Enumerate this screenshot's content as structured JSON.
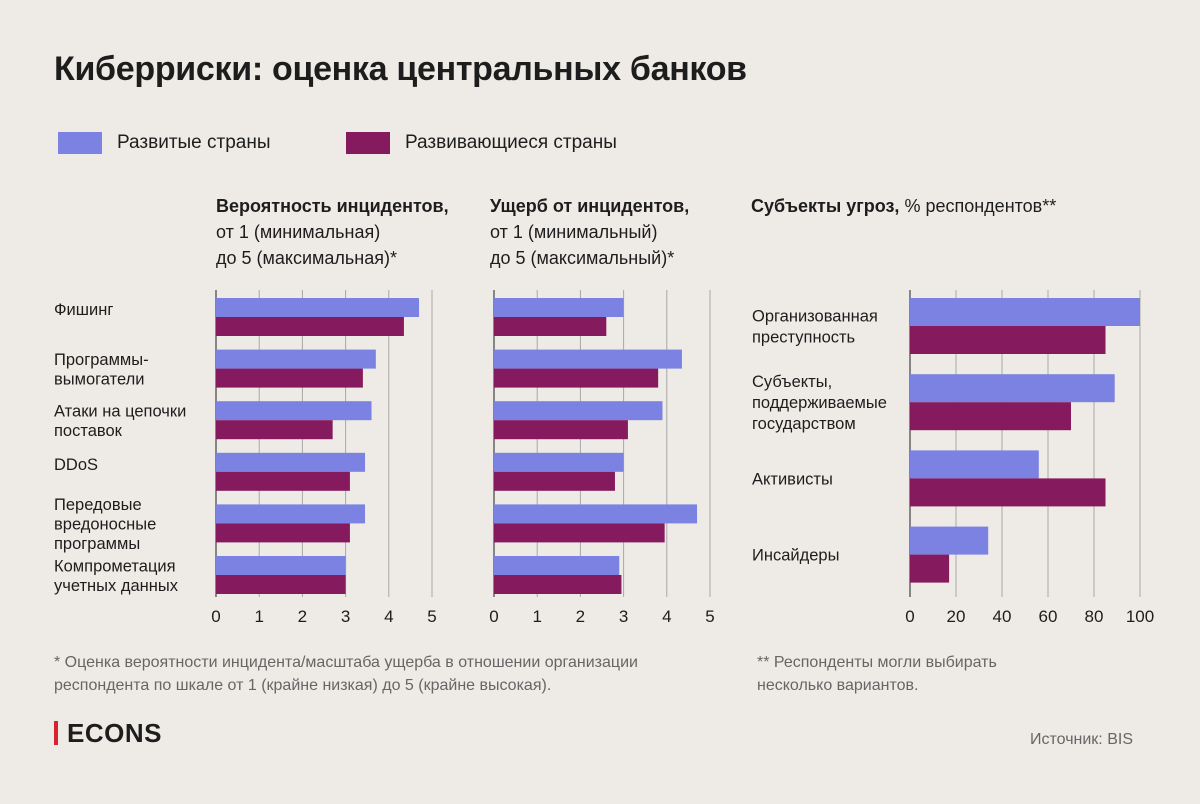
{
  "title": "Киберриски: оценка центральных банков",
  "legend": [
    {
      "label": "Развитые страны",
      "color": "#7b82e2"
    },
    {
      "label": "Развивающиеся страны",
      "color": "#861a5e"
    }
  ],
  "panel1_header": {
    "bold": "Вероятность инцидентов,",
    "line2": "от 1 (минимальная)",
    "line3": "до 5 (максимальная)*"
  },
  "panel2_header": {
    "bold": "Ущерб от инцидентов,",
    "line2": "от 1 (минимальный)",
    "line3": "до 5 (максимальный)*"
  },
  "panel3_header": {
    "bold": "Субъекты угроз,",
    "rest": "% респондентов**"
  },
  "chart_data": [
    {
      "type": "bar",
      "orientation": "horizontal",
      "categories": [
        [
          "Фишинг"
        ],
        [
          "Программы-",
          "вымогатели"
        ],
        [
          "Атаки на цепочки",
          "поставок"
        ],
        [
          "DDoS"
        ],
        [
          "Передовые",
          "вредоносные",
          "программы"
        ],
        [
          "Компрометация",
          "учетных данных"
        ]
      ],
      "series": [
        {
          "name": "Развитые страны",
          "values": [
            4.7,
            3.7,
            3.6,
            3.45,
            3.45,
            3.0
          ]
        },
        {
          "name": "Развивающиеся страны",
          "values": [
            4.35,
            3.4,
            2.7,
            3.1,
            3.1,
            3.0
          ]
        }
      ],
      "xlim": [
        0,
        5
      ],
      "ticks": [
        "0",
        "1",
        "2",
        "3",
        "4",
        "5"
      ],
      "grid": true
    },
    {
      "type": "bar",
      "orientation": "horizontal",
      "categories": [
        [
          "Фишинг"
        ],
        [
          "Программы-",
          "вымогатели"
        ],
        [
          "Атаки на цепочки",
          "поставок"
        ],
        [
          "DDoS"
        ],
        [
          "Передовые",
          "вредоносные",
          "программы"
        ],
        [
          "Компрометация",
          "учетных данных"
        ]
      ],
      "series": [
        {
          "name": "Развитые страны",
          "values": [
            3.0,
            4.35,
            3.9,
            3.0,
            4.7,
            2.9
          ]
        },
        {
          "name": "Развивающиеся страны",
          "values": [
            2.6,
            3.8,
            3.1,
            2.8,
            3.95,
            2.95
          ]
        }
      ],
      "xlim": [
        0,
        5
      ],
      "ticks": [
        "0",
        "1",
        "2",
        "3",
        "4",
        "5"
      ],
      "grid": true
    },
    {
      "type": "bar",
      "orientation": "horizontal",
      "categories": [
        [
          "Организованная",
          "преступность"
        ],
        [
          "Субъекты,",
          "поддерживаемые",
          "государством"
        ],
        [
          "Активисты"
        ],
        [
          "Инсайдеры"
        ]
      ],
      "series": [
        {
          "name": "Развитые страны",
          "values": [
            100,
            89,
            56,
            34
          ]
        },
        {
          "name": "Развивающиеся страны",
          "values": [
            85,
            70,
            85,
            17
          ]
        }
      ],
      "xlim": [
        0,
        100
      ],
      "ticks": [
        "0",
        "20",
        "40",
        "60",
        "80",
        "100"
      ],
      "grid": true
    }
  ],
  "footnote1": [
    "* Оценка вероятности инцидента/масштаба ущерба в отношении организации",
    "респондента по шкале от 1 (крайне низкая) до 5 (крайне высокая)."
  ],
  "footnote2": [
    "** Респонденты могли выбирать",
    "несколько вариантов."
  ],
  "logo": "ECONS",
  "source": "Источник: BIS"
}
